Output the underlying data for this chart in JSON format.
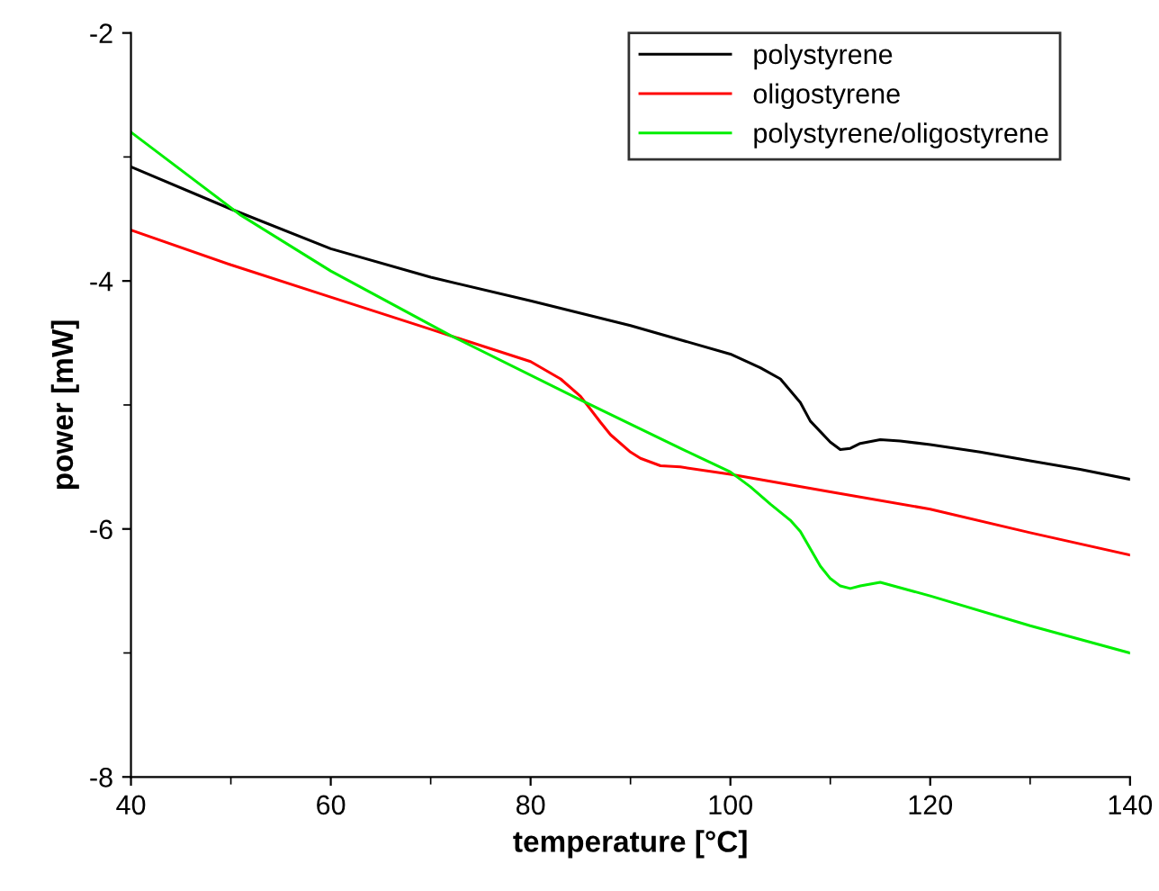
{
  "chart_data": {
    "type": "line",
    "xlabel": "temperature [°C]",
    "ylabel": "power [mW]",
    "xlim": [
      40,
      140
    ],
    "ylim": [
      -8,
      -2
    ],
    "xticks": [
      40,
      60,
      80,
      100,
      120,
      140
    ],
    "yticks": [
      -8,
      -6,
      -4,
      -2
    ],
    "grid": false,
    "legend": "top right",
    "marker": "none",
    "line_style": "solid",
    "series": [
      {
        "name": "polystyrene",
        "color": "#000000",
        "x": [
          40,
          50,
          60,
          70,
          80,
          90,
          100,
          103,
          105,
          107,
          108,
          110,
          111,
          112,
          113,
          115,
          117,
          120,
          125,
          130,
          135,
          140
        ],
        "values": [
          -3.08,
          -3.42,
          -3.74,
          -3.97,
          -4.16,
          -4.36,
          -4.59,
          -4.7,
          -4.79,
          -4.98,
          -5.13,
          -5.3,
          -5.36,
          -5.35,
          -5.31,
          -5.28,
          -5.29,
          -5.32,
          -5.38,
          -5.45,
          -5.52,
          -5.6
        ]
      },
      {
        "name": "oligostyrene",
        "color": "#ff0000",
        "x": [
          40,
          50,
          60,
          70,
          80,
          83,
          85,
          87,
          88,
          90,
          91,
          93,
          95,
          100,
          110,
          120,
          130,
          140
        ],
        "values": [
          -3.59,
          -3.87,
          -4.13,
          -4.39,
          -4.65,
          -4.79,
          -4.93,
          -5.14,
          -5.24,
          -5.38,
          -5.43,
          -5.49,
          -5.5,
          -5.56,
          -5.7,
          -5.84,
          -6.03,
          -6.21
        ]
      },
      {
        "name": "polystyrene/oligostyrene",
        "color": "#00ee00",
        "x": [
          40,
          51,
          60,
          72,
          85,
          95,
          100,
          102,
          104,
          106,
          107,
          109,
          110,
          111,
          112,
          113,
          115,
          120,
          130,
          140
        ],
        "values": [
          -2.8,
          -3.47,
          -3.92,
          -4.44,
          -4.96,
          -5.35,
          -5.54,
          -5.66,
          -5.8,
          -5.93,
          -6.02,
          -6.3,
          -6.4,
          -6.46,
          -6.48,
          -6.46,
          -6.43,
          -6.54,
          -6.78,
          -7.0
        ]
      }
    ]
  }
}
